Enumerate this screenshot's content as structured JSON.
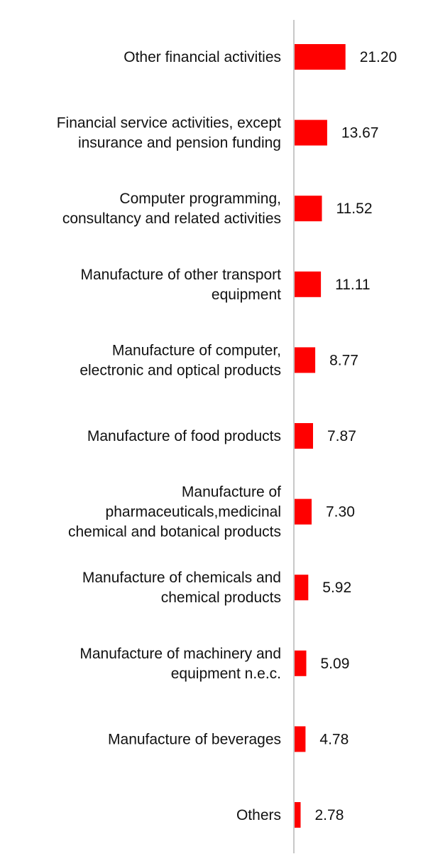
{
  "chart_data": {
    "type": "bar",
    "orientation": "horizontal",
    "title": "",
    "xlabel": "",
    "ylabel": "",
    "xlim": [
      0,
      100
    ],
    "grid": false,
    "bar_color": "#ff0000",
    "axis_color": "#c8c8c8",
    "categories": [
      [
        "Other financial activities"
      ],
      [
        "Financial service activities, except",
        "insurance and pension funding"
      ],
      [
        "Computer programming,",
        "consultancy and related activities"
      ],
      [
        "Manufacture of other transport",
        "equipment"
      ],
      [
        "Manufacture of computer,",
        "electronic and optical products"
      ],
      [
        "Manufacture of food products"
      ],
      [
        "Manufacture of",
        "pharmaceuticals,medicinal",
        "chemical and botanical products"
      ],
      [
        "Manufacture of chemicals and",
        "chemical products"
      ],
      [
        "Manufacture of machinery and",
        "equipment n.e.c."
      ],
      [
        "Manufacture of beverages"
      ],
      [
        "Others"
      ]
    ],
    "values": [
      21.2,
      13.67,
      11.52,
      11.11,
      8.77,
      7.87,
      7.3,
      5.92,
      5.09,
      4.78,
      2.78
    ],
    "value_labels": [
      "21.20",
      "13.67",
      "11.52",
      "11.11",
      "8.77",
      "7.87",
      "7.30",
      "5.92",
      "5.09",
      "4.78",
      "2.78"
    ]
  }
}
